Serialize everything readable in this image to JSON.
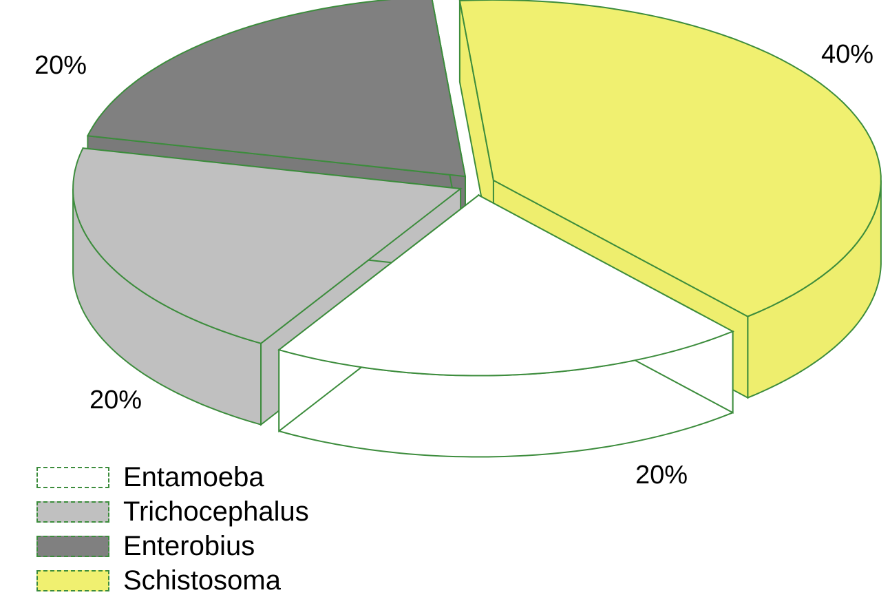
{
  "chart_data": {
    "type": "pie",
    "style": "3d-exploded",
    "slices": [
      {
        "label": "Entamoeba",
        "value": 20,
        "percent_label": "20%",
        "color": "#ffffff",
        "side_color": "#ffffff"
      },
      {
        "label": "Trichocephalus",
        "value": 20,
        "percent_label": "20%",
        "color": "#c0c0c0",
        "side_color": "#c0c0c0"
      },
      {
        "label": "Enterobius",
        "value": 20,
        "percent_label": "20%",
        "color": "#808080",
        "side_color": "#7a7a7a"
      },
      {
        "label": "Schistosoma",
        "value": 40,
        "percent_label": "40%",
        "color": "#f0f070",
        "side_color": "#eeee6e"
      }
    ],
    "outline_color": "#3c8c3c",
    "legend_position": "bottom-left"
  }
}
